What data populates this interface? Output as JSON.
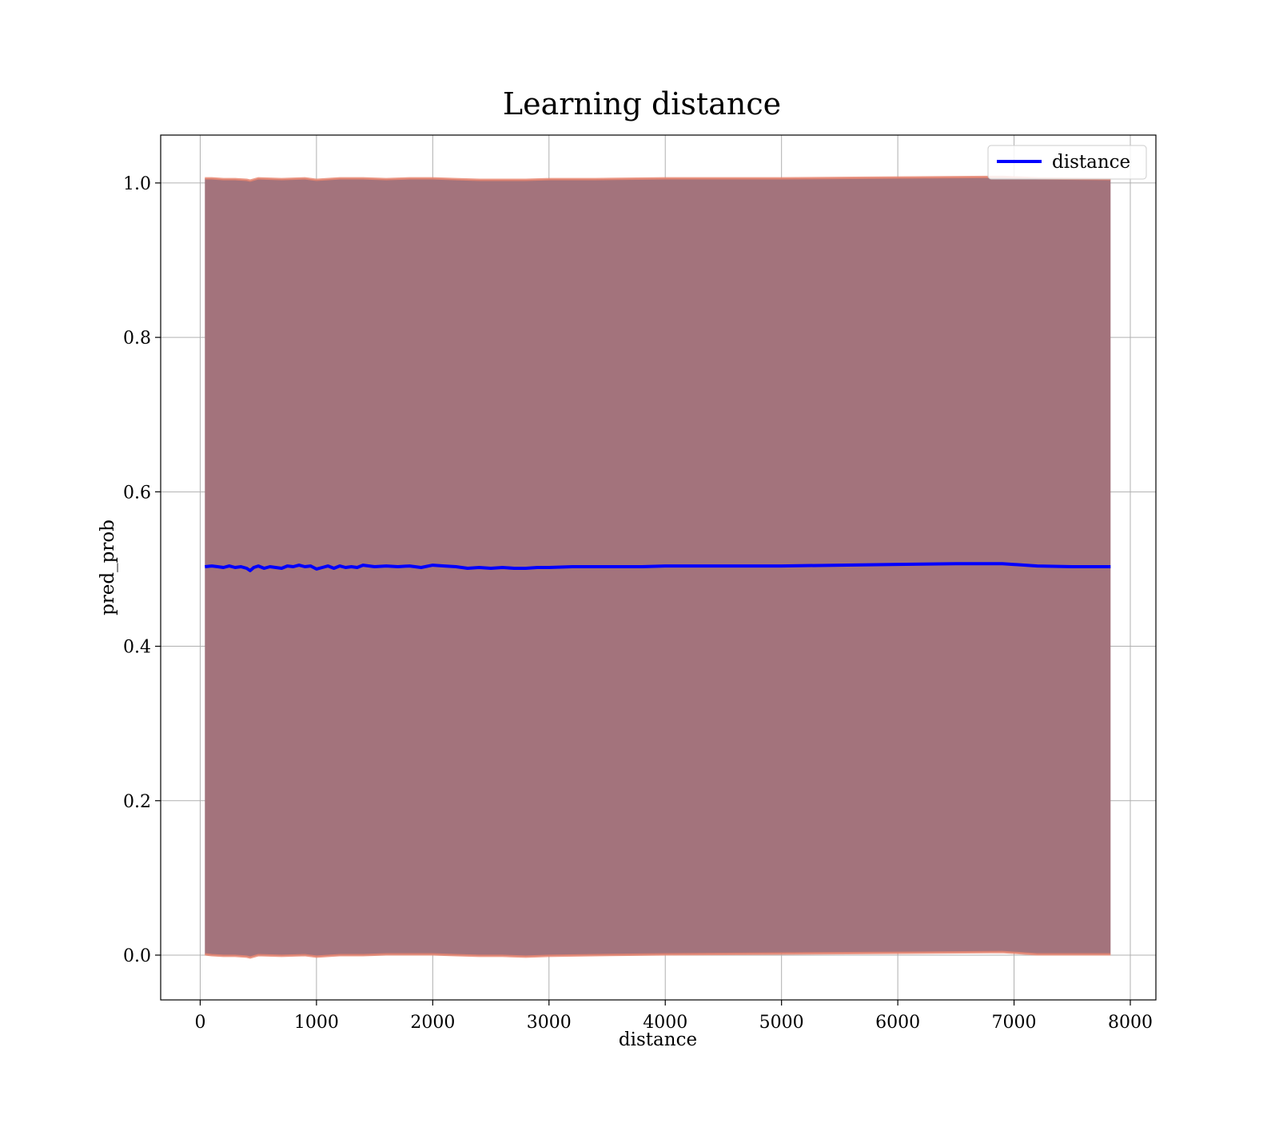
{
  "chart_data": {
    "type": "line",
    "title": "Learning distance",
    "xlabel": "distance",
    "ylabel": "pred_prob",
    "xlim": [
      -340,
      8220
    ],
    "ylim": [
      -0.058,
      1.062
    ],
    "xticks": [
      0,
      1000,
      2000,
      3000,
      4000,
      5000,
      6000,
      7000,
      8000
    ],
    "yticks": [
      0.0,
      0.2,
      0.4,
      0.6,
      0.8,
      1.0
    ],
    "xtick_labels": [
      "0",
      "1000",
      "2000",
      "3000",
      "4000",
      "5000",
      "6000",
      "7000",
      "8000"
    ],
    "ytick_labels": [
      "0.0",
      "0.2",
      "0.4",
      "0.6",
      "0.8",
      "1.0"
    ],
    "grid": true,
    "legend": {
      "position": "top-right",
      "entries": [
        "distance"
      ]
    },
    "colors": {
      "line": "#0000ff",
      "band_fill": "#a3737c",
      "band_edge": "#e8836d",
      "grid": "#b0b0b0"
    },
    "series": [
      {
        "name": "distance",
        "x": [
          40,
          100,
          150,
          200,
          250,
          300,
          350,
          400,
          430,
          460,
          500,
          550,
          600,
          650,
          700,
          750,
          800,
          850,
          900,
          950,
          1000,
          1050,
          1100,
          1150,
          1200,
          1250,
          1300,
          1350,
          1400,
          1500,
          1600,
          1700,
          1800,
          1900,
          2000,
          2100,
          2200,
          2300,
          2400,
          2500,
          2600,
          2700,
          2800,
          2900,
          3000,
          3200,
          3400,
          3600,
          3800,
          4000,
          4500,
          5000,
          5500,
          6000,
          6500,
          6900,
          7200,
          7500,
          7830
        ],
        "y": [
          0.503,
          0.504,
          0.503,
          0.502,
          0.504,
          0.502,
          0.503,
          0.501,
          0.498,
          0.502,
          0.504,
          0.501,
          0.503,
          0.502,
          0.501,
          0.504,
          0.503,
          0.505,
          0.503,
          0.504,
          0.5,
          0.502,
          0.504,
          0.501,
          0.504,
          0.502,
          0.503,
          0.502,
          0.505,
          0.503,
          0.504,
          0.503,
          0.504,
          0.502,
          0.505,
          0.504,
          0.503,
          0.501,
          0.502,
          0.501,
          0.502,
          0.501,
          0.501,
          0.502,
          0.502,
          0.503,
          0.503,
          0.503,
          0.503,
          0.504,
          0.504,
          0.504,
          0.505,
          0.506,
          0.507,
          0.507,
          0.504,
          0.503,
          0.503
        ]
      }
    ],
    "band": {
      "x": [
        40,
        100,
        200,
        300,
        400,
        430,
        500,
        700,
        900,
        1000,
        1200,
        1400,
        1600,
        1800,
        2000,
        2200,
        2400,
        2600,
        2800,
        3000,
        3400,
        4000,
        5000,
        6000,
        6900,
        7200,
        7830
      ],
      "upper": [
        1.006,
        1.006,
        1.005,
        1.005,
        1.004,
        1.003,
        1.006,
        1.005,
        1.006,
        1.004,
        1.006,
        1.006,
        1.005,
        1.006,
        1.006,
        1.005,
        1.004,
        1.004,
        1.004,
        1.005,
        1.005,
        1.006,
        1.006,
        1.007,
        1.008,
        1.006,
        1.005
      ],
      "lower": [
        0.001,
        0.0,
        -0.001,
        -0.001,
        -0.002,
        -0.003,
        0.0,
        -0.001,
        0.0,
        -0.002,
        0.0,
        0.0,
        0.001,
        0.001,
        0.001,
        0.0,
        -0.001,
        -0.001,
        -0.002,
        -0.001,
        0.0,
        0.001,
        0.002,
        0.003,
        0.004,
        0.001,
        0.001
      ]
    }
  }
}
